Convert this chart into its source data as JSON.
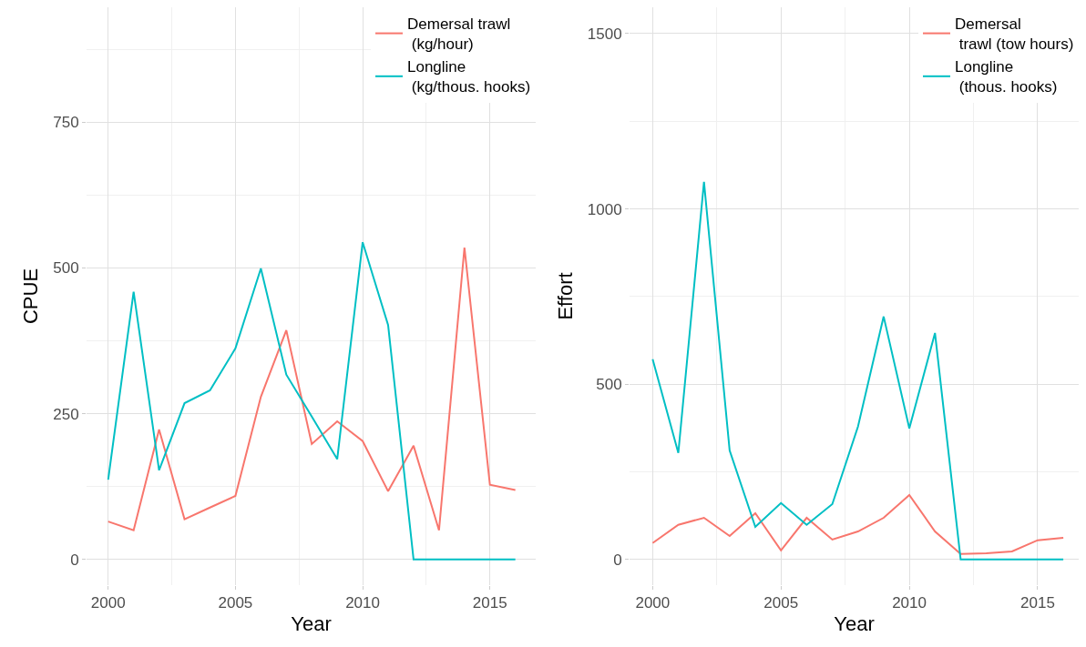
{
  "chart_data": [
    {
      "type": "line",
      "xlabel": "Year",
      "ylabel": "CPUE",
      "x": [
        2000,
        2001,
        2002,
        2003,
        2004,
        2005,
        2006,
        2007,
        2008,
        2009,
        2010,
        2011,
        2012,
        2013,
        2014,
        2015,
        2016
      ],
      "series": [
        {
          "name": "Demersal trawl\n (kg/hour)",
          "color": "#f8766d",
          "values": [
            65,
            50,
            223,
            69,
            89,
            109,
            279,
            393,
            198,
            237,
            203,
            117,
            195,
            50,
            535,
            128,
            119
          ]
        },
        {
          "name": "Longline\n (kg/thous. hooks)",
          "color": "#00bfc4",
          "values": [
            137,
            459,
            153,
            268,
            290,
            362,
            499,
            317,
            245,
            172,
            544,
            402,
            0,
            0,
            0,
            0,
            0
          ]
        }
      ],
      "xlim": [
        1999.15,
        2016.8
      ],
      "xticks": [
        2000,
        2005,
        2010,
        2015
      ],
      "ylim": [
        -44,
        947
      ],
      "yticks": [
        0,
        250,
        500,
        750
      ],
      "grid": true,
      "legend": "top right"
    },
    {
      "type": "line",
      "xlabel": "Year",
      "ylabel": "Effort",
      "x": [
        2000,
        2001,
        2002,
        2003,
        2004,
        2005,
        2006,
        2007,
        2008,
        2009,
        2010,
        2011,
        2012,
        2013,
        2014,
        2015,
        2016
      ],
      "series": [
        {
          "name": "Demersal\n trawl (tow hours)",
          "color": "#f8766d",
          "values": [
            47,
            99,
            119,
            67,
            132,
            26,
            119,
            57,
            80,
            119,
            184,
            80,
            16,
            18,
            23,
            55,
            62
          ]
        },
        {
          "name": "Longline\n (thous. hooks)",
          "color": "#00bfc4",
          "values": [
            571,
            304,
            1077,
            311,
            93,
            161,
            99,
            158,
            379,
            693,
            374,
            646,
            0,
            0,
            0,
            0,
            0
          ]
        }
      ],
      "xlim": [
        1999.1,
        2016.6
      ],
      "xticks": [
        2000,
        2005,
        2010,
        2015
      ],
      "ylim": [
        -73,
        1575
      ],
      "yticks": [
        0,
        500,
        1000,
        1500
      ],
      "grid": true,
      "legend": "top right"
    }
  ]
}
